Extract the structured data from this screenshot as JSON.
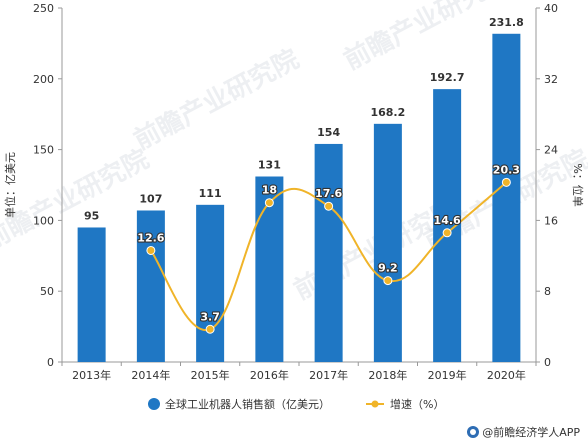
{
  "chart_data": {
    "type": "bar",
    "categories": [
      "2013年",
      "2014年",
      "2015年",
      "2016年",
      "2017年",
      "2018年",
      "2019年",
      "2020年"
    ],
    "series": [
      {
        "name": "全球工业机器人销售额（亿美元）",
        "type": "bar",
        "axis": "left",
        "values": [
          95,
          107,
          111,
          131,
          154,
          168.2,
          192.7,
          231.8
        ],
        "labels": [
          "95",
          "107",
          "111",
          "131",
          "154",
          "168.2",
          "192.7",
          "231.8"
        ],
        "color": "#1f77c4"
      },
      {
        "name": "增速（%）",
        "type": "line",
        "axis": "right",
        "values": [
          null,
          12.6,
          3.7,
          18,
          17.6,
          9.2,
          14.6,
          20.3
        ],
        "labels": [
          "",
          "12.6",
          "3.7",
          "18",
          "17.6",
          "9.2",
          "14.6",
          "20.3"
        ],
        "color": "#f0b429"
      }
    ],
    "y_left": {
      "label": "单位：亿美元",
      "range": [
        0,
        250
      ],
      "ticks": [
        0,
        50,
        100,
        150,
        200,
        250
      ],
      "tick_labels": [
        "0",
        "50",
        "100",
        "150",
        "200",
        "250"
      ]
    },
    "y_right": {
      "label": "%：位单",
      "range": [
        0,
        40
      ],
      "ticks": [
        0,
        8,
        16,
        24,
        32,
        40
      ],
      "tick_labels": [
        "0",
        "8",
        "16",
        "24",
        "32",
        "40"
      ]
    },
    "grid": false,
    "legend": "bottom"
  },
  "watermark": "前瞻产业研究院",
  "source": {
    "text": "@前瞻经济学人APP",
    "icon": "qianzhan-logo-icon"
  }
}
